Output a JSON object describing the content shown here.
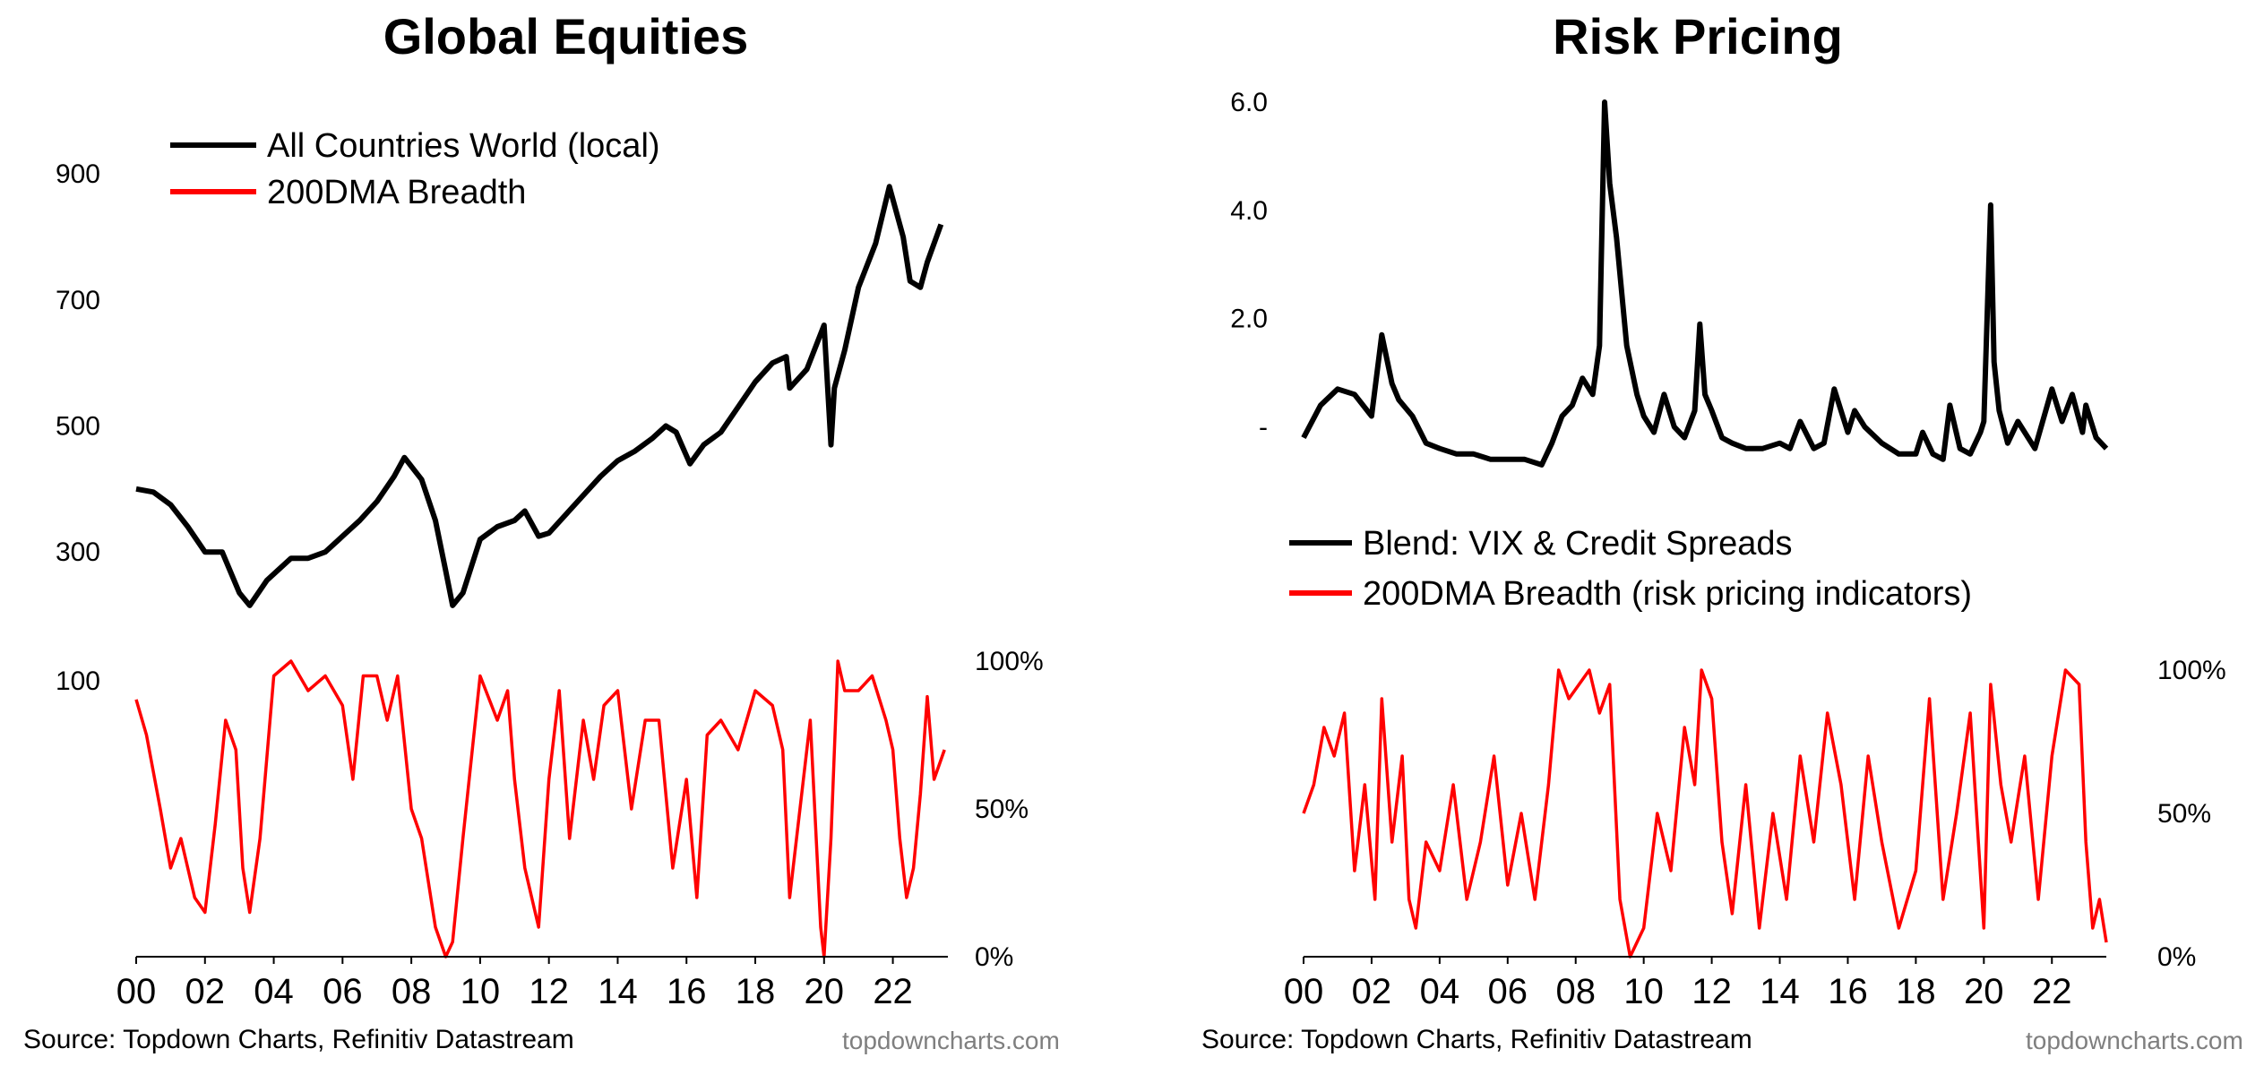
{
  "chart_data": [
    {
      "type": "line",
      "title": "Global Equities",
      "xticks": [
        "00",
        "02",
        "04",
        "06",
        "08",
        "10",
        "12",
        "14",
        "16",
        "18",
        "20",
        "22"
      ],
      "xlim": [
        2000,
        2023.6
      ],
      "top_panel": {
        "yticks": [
          "300",
          "500",
          "700",
          "900"
        ],
        "ylim": [
          195,
          960
        ],
        "legend": "top-left",
        "series": [
          {
            "name": "All Countries World (local)",
            "color": "#000000",
            "x": [
              2000,
              2000.5,
              2001,
              2001.5,
              2002,
              2002.5,
              2003.0,
              2003.3,
              2003.8,
              2004.5,
              2005,
              2005.5,
              2006,
              2006.5,
              2007,
              2007.5,
              2007.8,
              2008.3,
              2008.7,
              2009.0,
              2009.2,
              2009.5,
              2010,
              2010.5,
              2011,
              2011.3,
              2011.7,
              2012,
              2012.5,
              2013,
              2013.5,
              2014,
              2014.5,
              2015,
              2015.4,
              2015.7,
              2016.1,
              2016.5,
              2017,
              2017.5,
              2018,
              2018.5,
              2018.9,
              2019,
              2019.5,
              2020.0,
              2020.2,
              2020.3,
              2020.6,
              2021,
              2021.5,
              2021.9,
              2022.3,
              2022.5,
              2022.8,
              2023,
              2023.4
            ],
            "y": [
              400,
              395,
              375,
              340,
              300,
              300,
              235,
              215,
              255,
              290,
              290,
              300,
              325,
              350,
              380,
              420,
              450,
              415,
              350,
              270,
              215,
              235,
              320,
              340,
              350,
              365,
              325,
              330,
              360,
              390,
              420,
              445,
              460,
              480,
              500,
              490,
              440,
              470,
              490,
              530,
              570,
              600,
              610,
              560,
              590,
              660,
              470,
              560,
              620,
              720,
              790,
              880,
              800,
              730,
              720,
              760,
              820
            ]
          }
        ]
      },
      "bottom_panel": {
        "yticks": [
          "0%",
          "50%",
          "100%"
        ],
        "ylim": [
          0,
          100
        ],
        "left_tick": "100",
        "series": [
          {
            "name": "200DMA Breadth",
            "color": "#ff0000",
            "x": [
              2000,
              2000.3,
              2000.7,
              2001,
              2001.3,
              2001.7,
              2002.0,
              2002.3,
              2002.6,
              2002.9,
              2003.1,
              2003.3,
              2003.6,
              2004.0,
              2004.5,
              2005,
              2005.5,
              2006,
              2006.3,
              2006.6,
              2007,
              2007.3,
              2007.6,
              2008.0,
              2008.3,
              2008.7,
              2009.0,
              2009.2,
              2009.5,
              2010,
              2010.5,
              2010.8,
              2011,
              2011.3,
              2011.7,
              2012,
              2012.3,
              2012.6,
              2013,
              2013.3,
              2013.6,
              2014,
              2014.4,
              2014.8,
              2015.2,
              2015.6,
              2016,
              2016.3,
              2016.6,
              2017,
              2017.5,
              2018,
              2018.5,
              2018.8,
              2019,
              2019.3,
              2019.6,
              2019.9,
              2020.0,
              2020.2,
              2020.4,
              2020.6,
              2021,
              2021.4,
              2021.8,
              2022,
              2022.2,
              2022.4,
              2022.6,
              2022.8,
              2023,
              2023.2,
              2023.5
            ],
            "y": [
              87,
              75,
              50,
              30,
              40,
              20,
              15,
              45,
              80,
              70,
              30,
              15,
              40,
              95,
              100,
              90,
              95,
              85,
              60,
              95,
              95,
              80,
              95,
              50,
              40,
              10,
              0,
              5,
              40,
              95,
              80,
              90,
              60,
              30,
              10,
              60,
              90,
              40,
              80,
              60,
              85,
              90,
              50,
              80,
              80,
              30,
              60,
              20,
              75,
              80,
              70,
              90,
              85,
              70,
              20,
              50,
              80,
              10,
              0,
              40,
              100,
              90,
              90,
              95,
              80,
              70,
              40,
              20,
              30,
              55,
              88,
              60,
              70
            ]
          }
        ]
      },
      "source": "Source: Topdown Charts, Refinitiv Datastream",
      "brand": "topdowncharts.com"
    },
    {
      "type": "line",
      "title": "Risk Pricing",
      "xticks": [
        "00",
        "02",
        "04",
        "06",
        "08",
        "10",
        "12",
        "14",
        "16",
        "18",
        "20",
        "22"
      ],
      "xlim": [
        2000,
        2023.6
      ],
      "top_panel": {
        "yticks": [
          "-",
          "2.0",
          "4.0",
          "6.0"
        ],
        "ylim": [
          -1.05,
          6.1
        ],
        "legend": "bottom-left",
        "series": [
          {
            "name": "Blend: VIX & Credit Spreads",
            "color": "#000000",
            "x": [
              2000,
              2000.5,
              2001,
              2001.5,
              2002.0,
              2002.3,
              2002.6,
              2002.8,
              2003.2,
              2003.6,
              2004,
              2004.5,
              2005,
              2005.5,
              2006,
              2006.5,
              2007,
              2007.3,
              2007.6,
              2007.9,
              2008.2,
              2008.5,
              2008.7,
              2008.85,
              2009.0,
              2009.2,
              2009.5,
              2009.8,
              2010,
              2010.3,
              2010.6,
              2010.9,
              2011.2,
              2011.5,
              2011.65,
              2011.8,
              2012,
              2012.3,
              2012.6,
              2013,
              2013.5,
              2014,
              2014.3,
              2014.6,
              2015,
              2015.3,
              2015.6,
              2016,
              2016.2,
              2016.5,
              2017,
              2017.5,
              2018,
              2018.2,
              2018.5,
              2018.8,
              2019,
              2019.3,
              2019.6,
              2019.9,
              2020.0,
              2020.2,
              2020.3,
              2020.45,
              2020.7,
              2021,
              2021.5,
              2022,
              2022.3,
              2022.6,
              2022.9,
              2023,
              2023.3,
              2023.6
            ],
            "y": [
              -0.2,
              0.4,
              0.7,
              0.6,
              0.2,
              1.7,
              0.8,
              0.5,
              0.2,
              -0.3,
              -0.4,
              -0.5,
              -0.5,
              -0.6,
              -0.6,
              -0.6,
              -0.7,
              -0.3,
              0.2,
              0.4,
              0.9,
              0.6,
              1.5,
              6.0,
              4.5,
              3.5,
              1.5,
              0.6,
              0.2,
              -0.1,
              0.6,
              0.0,
              -0.2,
              0.3,
              1.9,
              0.6,
              0.3,
              -0.2,
              -0.3,
              -0.4,
              -0.4,
              -0.3,
              -0.4,
              0.1,
              -0.4,
              -0.3,
              0.7,
              -0.1,
              0.3,
              0.0,
              -0.3,
              -0.5,
              -0.5,
              -0.1,
              -0.5,
              -0.6,
              0.4,
              -0.4,
              -0.5,
              -0.1,
              0.1,
              4.1,
              1.2,
              0.3,
              -0.3,
              0.1,
              -0.4,
              0.7,
              0.1,
              0.6,
              -0.1,
              0.4,
              -0.2,
              -0.4
            ]
          }
        ]
      },
      "bottom_panel": {
        "yticks": [
          "0%",
          "50%",
          "100%"
        ],
        "ylim": [
          0,
          100
        ],
        "series": [
          {
            "name": "200DMA Breadth (risk pricing indicators)",
            "color": "#ff0000",
            "x": [
              2000,
              2000.3,
              2000.6,
              2000.9,
              2001.2,
              2001.5,
              2001.8,
              2002.1,
              2002.3,
              2002.6,
              2002.9,
              2003.1,
              2003.3,
              2003.6,
              2004,
              2004.4,
              2004.8,
              2005.2,
              2005.6,
              2006,
              2006.4,
              2006.8,
              2007.2,
              2007.5,
              2007.8,
              2008.1,
              2008.4,
              2008.7,
              2009.0,
              2009.3,
              2009.6,
              2010,
              2010.4,
              2010.8,
              2011.2,
              2011.5,
              2011.7,
              2012,
              2012.3,
              2012.6,
              2013,
              2013.4,
              2013.8,
              2014.2,
              2014.6,
              2015,
              2015.4,
              2015.8,
              2016.2,
              2016.6,
              2017,
              2017.5,
              2018,
              2018.4,
              2018.8,
              2019.2,
              2019.6,
              2020,
              2020.2,
              2020.5,
              2020.8,
              2021.2,
              2021.6,
              2022,
              2022.4,
              2022.8,
              2023,
              2023.2,
              2023.4,
              2023.6
            ],
            "y": [
              50,
              60,
              80,
              70,
              85,
              30,
              60,
              20,
              90,
              40,
              70,
              20,
              10,
              40,
              30,
              60,
              20,
              40,
              70,
              25,
              50,
              20,
              60,
              100,
              90,
              95,
              100,
              85,
              95,
              20,
              0,
              10,
              50,
              30,
              80,
              60,
              100,
              90,
              40,
              15,
              60,
              10,
              50,
              20,
              70,
              40,
              85,
              60,
              20,
              70,
              40,
              10,
              30,
              90,
              20,
              50,
              85,
              10,
              95,
              60,
              40,
              70,
              20,
              70,
              100,
              95,
              40,
              10,
              20,
              5
            ]
          }
        ]
      },
      "source": "Source: Topdown Charts, Refinitiv Datastream",
      "brand": "topdowncharts.com"
    }
  ]
}
